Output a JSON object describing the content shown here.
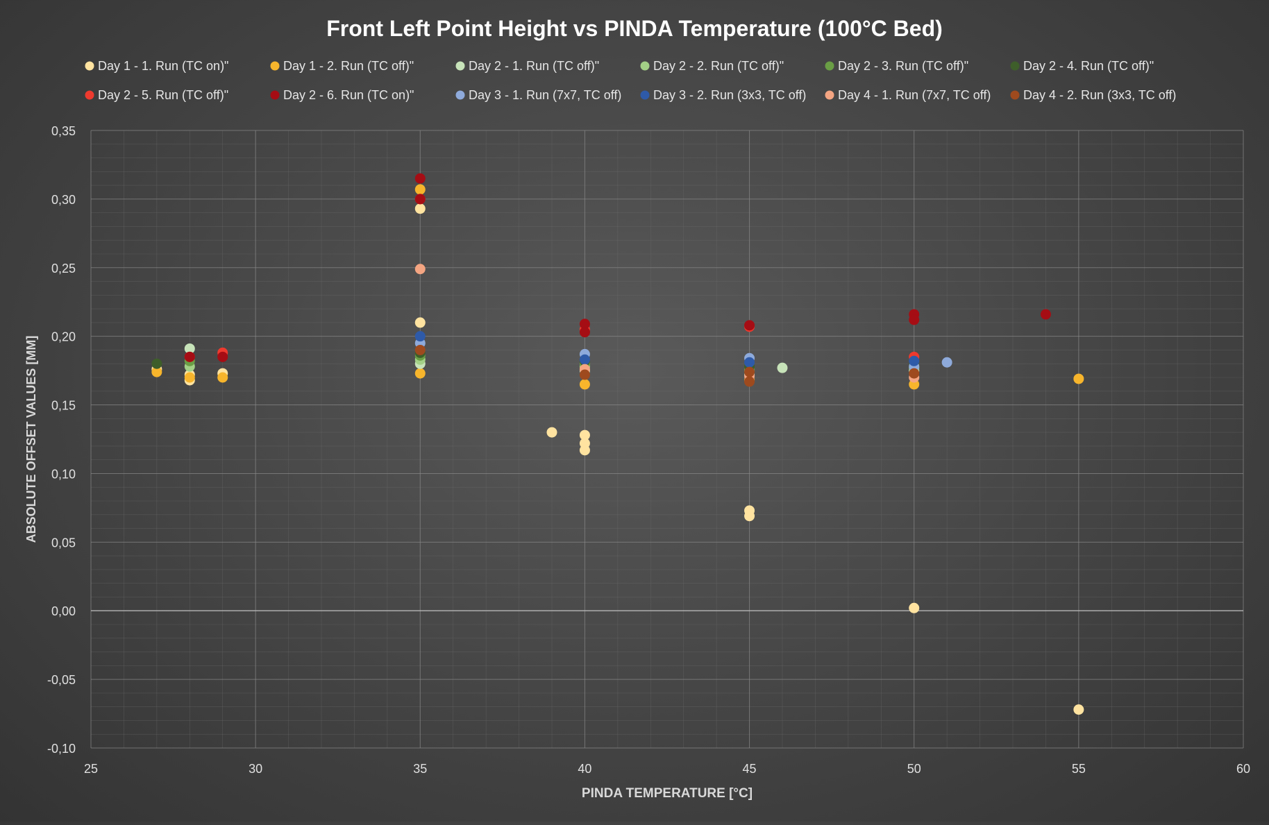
{
  "chart_data": {
    "type": "scatter",
    "title": "Front Left Point Height vs PINDA Temperature (100°C Bed)",
    "xlabel": "PINDA TEMPERATURE [°C]",
    "ylabel": "ABSOLUTE OFFSET VALUES [MM]",
    "xlim": [
      25,
      60
    ],
    "ylim": [
      -0.1,
      0.35
    ],
    "x_ticks": [
      "25",
      "30",
      "35",
      "40",
      "45",
      "50",
      "55",
      "60"
    ],
    "y_ticks": [
      "-0,10",
      "-0,05",
      "0,00",
      "0,05",
      "0,10",
      "0,15",
      "0,20",
      "0,25",
      "0,30",
      "0,35"
    ],
    "grid": true,
    "minor_grid": true,
    "legend_position": "top",
    "series": [
      {
        "name": "Day 1 - 1. Run (TC on)\"",
        "color": "#ffe3a0",
        "points": [
          [
            27,
            0.176
          ],
          [
            28,
            0.168
          ],
          [
            28,
            0.172
          ],
          [
            29,
            0.173
          ],
          [
            35,
            0.293
          ],
          [
            35,
            0.21
          ],
          [
            39,
            0.13
          ],
          [
            40,
            0.128
          ],
          [
            40,
            0.122
          ],
          [
            40,
            0.117
          ],
          [
            45,
            0.073
          ],
          [
            45,
            0.069
          ],
          [
            50,
            0.002
          ],
          [
            55,
            -0.072
          ]
        ]
      },
      {
        "name": "Day 1 - 2. Run (TC off)\"",
        "color": "#f7b52c",
        "points": [
          [
            27,
            0.174
          ],
          [
            28,
            0.17
          ],
          [
            29,
            0.17
          ],
          [
            35,
            0.307
          ],
          [
            35,
            0.173
          ],
          [
            40,
            0.165
          ],
          [
            45,
            0.168
          ],
          [
            50,
            0.165
          ],
          [
            55,
            0.169
          ]
        ]
      },
      {
        "name": "Day 2 - 1. Run (TC off)\"",
        "color": "#c7e3b9",
        "points": [
          [
            28,
            0.191
          ],
          [
            35,
            0.18
          ],
          [
            40,
            0.175
          ],
          [
            45,
            0.172
          ],
          [
            46,
            0.177
          ],
          [
            50,
            0.175
          ]
        ]
      },
      {
        "name": "Day 2 - 2. Run (TC off)\"",
        "color": "#a3d086",
        "points": [
          [
            28,
            0.178
          ],
          [
            35,
            0.183
          ],
          [
            40,
            0.178
          ],
          [
            45,
            0.175
          ],
          [
            50,
            0.177
          ]
        ]
      },
      {
        "name": "Day 2 - 3. Run (TC off)\"",
        "color": "#6a9e45",
        "points": [
          [
            28,
            0.182
          ],
          [
            35,
            0.186
          ],
          [
            40,
            0.18
          ],
          [
            45,
            0.176
          ]
        ]
      },
      {
        "name": "Day 2 - 4. Run (TC off)\"",
        "color": "#3e5e2a",
        "points": [
          [
            27,
            0.18
          ],
          [
            35,
            0.188
          ],
          [
            40,
            0.182
          ],
          [
            45,
            0.178
          ],
          [
            50,
            0.179
          ]
        ]
      },
      {
        "name": "Day 2 - 5. Run (TC off)\"",
        "color": "#ee3a2e",
        "points": [
          [
            28,
            0.185
          ],
          [
            29,
            0.188
          ],
          [
            35,
            0.3
          ],
          [
            40,
            0.205
          ],
          [
            45,
            0.207
          ],
          [
            50,
            0.185
          ]
        ]
      },
      {
        "name": "Day 2 - 6. Run (TC on)\"",
        "color": "#a50d14",
        "points": [
          [
            28,
            0.185
          ],
          [
            29,
            0.185
          ],
          [
            35,
            0.315
          ],
          [
            35,
            0.3
          ],
          [
            40,
            0.209
          ],
          [
            40,
            0.203
          ],
          [
            45,
            0.208
          ],
          [
            50,
            0.216
          ],
          [
            50,
            0.212
          ],
          [
            54,
            0.216
          ]
        ]
      },
      {
        "name": "Day 3 - 1. Run (7x7, TC off)",
        "color": "#8eaadb",
        "points": [
          [
            35,
            0.195
          ],
          [
            40,
            0.187
          ],
          [
            45,
            0.184
          ],
          [
            50,
            0.178
          ],
          [
            51,
            0.181
          ]
        ]
      },
      {
        "name": "Day 3 - 2. Run (3x3, TC off)",
        "color": "#2e5aa8",
        "points": [
          [
            35,
            0.2
          ],
          [
            40,
            0.183
          ],
          [
            45,
            0.181
          ],
          [
            50,
            0.182
          ]
        ]
      },
      {
        "name": "Day 4 - 1. Run (7x7, TC off)",
        "color": "#f4a582",
        "points": [
          [
            35,
            0.249
          ],
          [
            40,
            0.176
          ],
          [
            45,
            0.171
          ],
          [
            50,
            0.17
          ]
        ]
      },
      {
        "name": "Day 4 - 2. Run (3x3, TC off)",
        "color": "#9e4a1e",
        "points": [
          [
            35,
            0.19
          ],
          [
            40,
            0.172
          ],
          [
            45,
            0.167
          ],
          [
            45,
            0.174
          ],
          [
            50,
            0.173
          ]
        ]
      }
    ]
  }
}
